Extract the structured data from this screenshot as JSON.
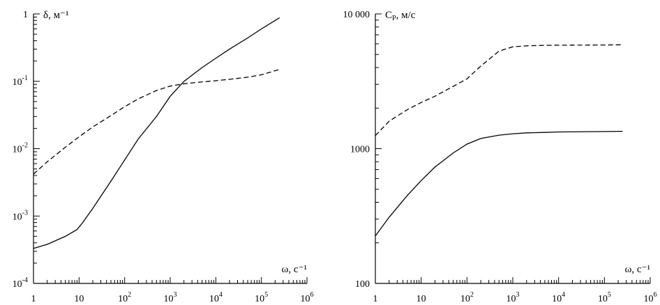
{
  "chart_data": [
    {
      "type": "line",
      "ylabel": "δ, м⁻¹",
      "xlabel": "ω, с⁻¹",
      "x_scale": "log",
      "y_scale": "log",
      "xlim": [
        1,
        1000000
      ],
      "ylim": [
        0.0001,
        1
      ],
      "x_ticks": [
        {
          "value": 1,
          "base": "1",
          "exp": ""
        },
        {
          "value": 10,
          "base": "10",
          "exp": ""
        },
        {
          "value": 100,
          "base": "10",
          "exp": "2"
        },
        {
          "value": 1000,
          "base": "10",
          "exp": "3"
        },
        {
          "value": 10000,
          "base": "10",
          "exp": "4"
        },
        {
          "value": 100000,
          "base": "10",
          "exp": "5"
        },
        {
          "value": 1000000,
          "base": "10",
          "exp": "6"
        }
      ],
      "y_ticks": [
        {
          "value": 1,
          "base": "1",
          "exp": ""
        },
        {
          "value": 0.1,
          "base": "10",
          "exp": "-1"
        },
        {
          "value": 0.01,
          "base": "10",
          "exp": "-2"
        },
        {
          "value": 0.001,
          "base": "10",
          "exp": "-3"
        },
        {
          "value": 0.0001,
          "base": "10",
          "exp": "-4"
        }
      ],
      "series": [
        {
          "style": "solid",
          "x": [
            1,
            2,
            5,
            9,
            12,
            20,
            50,
            100,
            200,
            500,
            1000,
            2000,
            5000,
            10000,
            20000,
            50000,
            100000,
            250000
          ],
          "y": [
            0.00033,
            0.00038,
            0.0005,
            0.00063,
            0.0008,
            0.0013,
            0.0033,
            0.0068,
            0.014,
            0.03,
            0.06,
            0.1,
            0.16,
            0.22,
            0.3,
            0.44,
            0.6,
            0.88
          ]
        },
        {
          "style": "dashed",
          "x": [
            1,
            2,
            5,
            10,
            20,
            50,
            100,
            200,
            500,
            1000,
            2000,
            5000,
            10000,
            20000,
            50000,
            100000,
            250000
          ],
          "y": [
            0.0042,
            0.0064,
            0.0105,
            0.015,
            0.021,
            0.031,
            0.042,
            0.055,
            0.073,
            0.085,
            0.092,
            0.098,
            0.102,
            0.107,
            0.115,
            0.125,
            0.15
          ]
        }
      ]
    },
    {
      "type": "line",
      "ylabel_main": "C",
      "ylabel_sub": "P",
      "ylabel_unit": ", м/с",
      "xlabel": "ω, с⁻¹",
      "x_scale": "log",
      "y_scale": "log",
      "xlim": [
        1,
        1000000
      ],
      "ylim": [
        100,
        10000
      ],
      "x_ticks": [
        {
          "value": 1,
          "base": "1",
          "exp": ""
        },
        {
          "value": 10,
          "base": "10",
          "exp": ""
        },
        {
          "value": 100,
          "base": "10",
          "exp": "2"
        },
        {
          "value": 1000,
          "base": "10",
          "exp": "3"
        },
        {
          "value": 10000,
          "base": "10",
          "exp": "4"
        },
        {
          "value": 100000,
          "base": "10",
          "exp": "5"
        },
        {
          "value": 1000000,
          "base": "10",
          "exp": "6"
        }
      ],
      "y_ticks": [
        {
          "value": 10000,
          "base": "10 000",
          "exp": ""
        },
        {
          "value": 1000,
          "base": "1000",
          "exp": ""
        },
        {
          "value": 100,
          "base": "100",
          "exp": ""
        }
      ],
      "series": [
        {
          "style": "solid",
          "x": [
            1,
            2,
            5,
            10,
            20,
            50,
            100,
            200,
            500,
            1000,
            2000,
            5000,
            10000,
            100000,
            250000
          ],
          "y": [
            225,
            310,
            450,
            580,
            730,
            930,
            1080,
            1190,
            1260,
            1290,
            1310,
            1320,
            1330,
            1340,
            1345
          ]
        },
        {
          "style": "dashed",
          "x": [
            1,
            2,
            5,
            10,
            20,
            50,
            100,
            200,
            500,
            1000,
            2000,
            5000,
            10000,
            100000,
            250000
          ],
          "y": [
            1250,
            1600,
            1950,
            2200,
            2450,
            2900,
            3300,
            4100,
            5300,
            5700,
            5800,
            5850,
            5860,
            5880,
            5900
          ]
        }
      ]
    }
  ]
}
